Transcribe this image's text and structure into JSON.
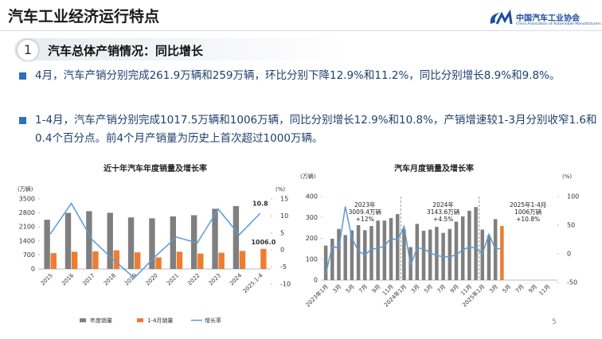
{
  "header": {
    "title": "汽车工业经济运行特点",
    "logo_cn": "中国汽车工业协会",
    "logo_en": "China Association of Automobile Manufacturers"
  },
  "section": {
    "number": "1",
    "title": "汽车总体产销情况：同比增长"
  },
  "bullets": [
    "4月，汽车产销分别完成261.9万辆和259万辆，环比分别下降12.9%和11.2%，同比分别增长8.9%和9.8%。",
    "1-4月，汽车产销分别完成1017.5万辆和1006万辆，同比分别增长12.9%和10.8%，产销增速较1-3月分别收窄1.6和0.4个百分点。前4个月产销量为历史上首次超过1000万辆。"
  ],
  "page_number": "5",
  "chart_data": [
    {
      "type": "bar",
      "title": "近十年汽车年度销量及增长率",
      "y_label": "(万辆)",
      "y2_label": "(%)",
      "categories": [
        "2015",
        "2016",
        "2017",
        "2018",
        "2019",
        "2020",
        "2021",
        "2022",
        "2023",
        "2024",
        "2025.1-4"
      ],
      "series": [
        {
          "name": "年度销量",
          "color": "#7f7f7f",
          "kind": "bar",
          "values": [
            2460,
            2803,
            2888,
            2808,
            2577,
            2531,
            2627,
            2686,
            3009,
            3144,
            null
          ]
        },
        {
          "name": "1-4月销量",
          "color": "#ed7d31",
          "kind": "bar",
          "values": [
            790,
            860,
            880,
            930,
            830,
            576,
            860,
            770,
            810,
            900,
            1006
          ],
          "value_labels": [
            null,
            null,
            null,
            null,
            null,
            null,
            null,
            null,
            null,
            null,
            "1006.0"
          ]
        },
        {
          "name": "增长率",
          "color": "#5b9bd5",
          "kind": "line",
          "axis": "y2",
          "values": [
            4.7,
            13.7,
            3.0,
            -2.8,
            -8.2,
            -1.9,
            3.8,
            2.1,
            12.0,
            4.5,
            10.8
          ],
          "labeled": [
            10
          ]
        }
      ],
      "ylim": [
        0,
        3500
      ],
      "yticks": [
        0,
        700,
        1400,
        2100,
        2800,
        3500
      ],
      "y2lim": [
        -10,
        15
      ],
      "y2ticks": [
        -10,
        -5,
        0,
        5,
        10,
        15
      ],
      "legend": "bottom"
    },
    {
      "type": "bar",
      "title": "汽车月度销量及增长率",
      "y_label": "(万辆)",
      "y2_label": "(%)",
      "categories": [
        "2023年1月",
        null,
        "3月",
        null,
        "5月",
        null,
        "7月",
        null,
        "9月",
        null,
        "11月",
        null,
        "2024年1月",
        null,
        "3月",
        null,
        "5月",
        null,
        "7月",
        null,
        "9月",
        null,
        "11月",
        null,
        "2025年1月",
        null,
        "3月",
        null,
        "5月",
        null,
        "7月",
        null,
        "9月",
        null,
        "11月",
        null
      ],
      "series": [
        {
          "color": "#7f7f7f",
          "kind": "bar",
          "values": [
            165,
            198,
            245,
            216,
            238,
            263,
            239,
            259,
            285,
            285,
            297,
            316,
            244,
            158,
            269,
            236,
            242,
            255,
            226,
            245,
            280,
            305,
            332,
            350,
            242,
            213,
            292,
            null,
            null,
            null,
            null,
            null,
            null,
            null,
            null,
            null
          ]
        },
        {
          "color": "#ed7d31",
          "kind": "bar",
          "values": [
            null,
            null,
            null,
            null,
            null,
            null,
            null,
            null,
            null,
            null,
            null,
            null,
            null,
            null,
            null,
            null,
            null,
            null,
            null,
            null,
            null,
            null,
            null,
            null,
            null,
            null,
            null,
            259,
            null,
            null,
            null,
            null,
            null,
            null,
            null,
            null
          ]
        },
        {
          "color": "#5b9bd5",
          "kind": "line",
          "axis": "y2",
          "values": [
            -35,
            13.2,
            9.7,
            82.7,
            27.9,
            4.8,
            -1.9,
            8.2,
            9.5,
            13.8,
            27.4,
            23.5,
            47.9,
            -19.9,
            9.9,
            9.3,
            1.5,
            -2.7,
            -5.2,
            -5.0,
            -1.7,
            7.0,
            11.7,
            10.5,
            -0.6,
            34.4,
            8.2,
            9.8,
            null,
            null,
            null,
            null,
            null,
            null,
            null,
            null
          ]
        }
      ],
      "annotations": [
        [
          "2023年",
          "3009.4万辆",
          "+12%"
        ],
        [
          "2024年",
          "3143.6万辆",
          "+4.5%"
        ],
        [
          "2025年1-4月",
          "1006万辆",
          "+10.8%"
        ]
      ],
      "ylim": [
        0,
        400
      ],
      "yticks": [
        0,
        100,
        200,
        300,
        400
      ],
      "y2lim": [
        -50,
        100
      ],
      "y2ticks": [
        -50,
        0,
        50,
        100
      ]
    }
  ]
}
